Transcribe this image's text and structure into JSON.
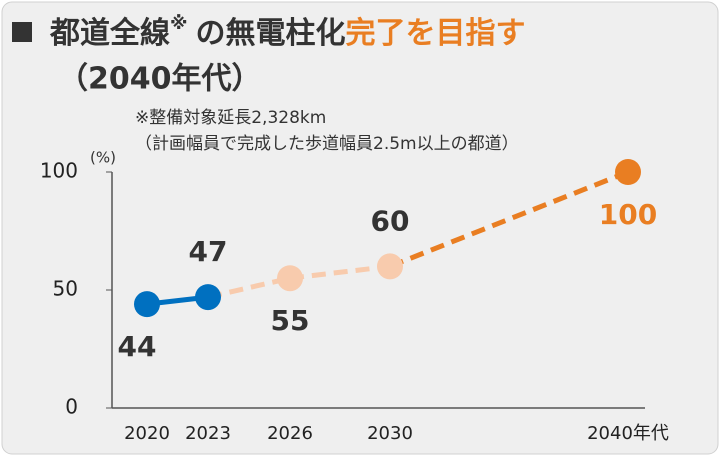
{
  "chart_data": {
    "type": "line",
    "title_parts": [
      "都道全線",
      "※",
      "の無電柱化",
      "完了を目指す",
      "（2040年代）"
    ],
    "title_colors": [
      "#333333",
      "#333333",
      "#333333",
      "#e97e22",
      "#333333"
    ],
    "notes": [
      "※整備対象延長2,328km",
      "（計画幅員で完成した歩道幅員2.5m以上の都道）"
    ],
    "ylabel": "(%)",
    "categories": [
      "2020",
      "2023",
      "2026",
      "2030",
      "2040年代"
    ],
    "values": [
      44,
      47,
      55,
      60,
      100
    ],
    "point_colors": [
      "#0070c0",
      "#0070c0",
      "#f8cbad",
      "#f8cbad",
      "#e97e22"
    ],
    "segment_colors": [
      "#0070c0",
      "#f8cbad",
      "#f8cbad",
      "#e97e22"
    ],
    "segment_dashed": [
      false,
      true,
      true,
      true
    ],
    "label_colors": [
      "#333333",
      "#333333",
      "#333333",
      "#333333",
      "#e97e22"
    ],
    "label_positions": [
      "below",
      "above",
      "below",
      "above",
      "below"
    ],
    "ylim": [
      0,
      100
    ],
    "yticks": [
      0,
      50,
      100
    ]
  }
}
